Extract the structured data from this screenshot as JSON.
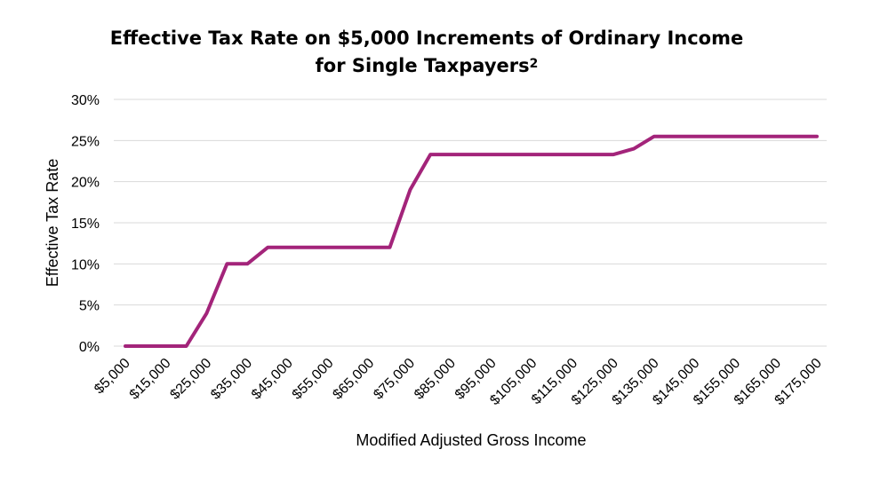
{
  "chart_data": {
    "type": "line",
    "title_line1": "Effective Tax Rate on $5,000 Increments of Ordinary Income",
    "title_line2": "for Single Taxpayers",
    "title_footnote": "2",
    "xlabel": "Modified Adjusted Gross Income",
    "ylabel": "Effective Tax Rate",
    "ylim": [
      0,
      30
    ],
    "yticks": [
      "0%",
      "5%",
      "10%",
      "15%",
      "20%",
      "25%",
      "30%"
    ],
    "x_tick_labels": [
      "$5,000",
      "$15,000",
      "$25,000",
      "$35,000",
      "$45,000",
      "$55,000",
      "$65,000",
      "$75,000",
      "$85,000",
      "$95,000",
      "$105,000",
      "$115,000",
      "$125,000",
      "$135,000",
      "$145,000",
      "$155,000",
      "$165,000",
      "$175,000"
    ],
    "x": [
      5000,
      10000,
      15000,
      20000,
      25000,
      30000,
      35000,
      40000,
      45000,
      50000,
      55000,
      60000,
      65000,
      70000,
      75000,
      80000,
      85000,
      90000,
      95000,
      100000,
      105000,
      110000,
      115000,
      120000,
      125000,
      130000,
      135000,
      140000,
      145000,
      150000,
      155000,
      160000,
      165000,
      170000,
      175000
    ],
    "series": [
      {
        "values": [
          0,
          0,
          0,
          0,
          4,
          10,
          10,
          12,
          12,
          12,
          12,
          12,
          12,
          12,
          19,
          23.3,
          23.3,
          23.3,
          23.3,
          23.3,
          23.3,
          23.3,
          23.3,
          23.3,
          23.3,
          24,
          25.5,
          25.5,
          25.5,
          25.5,
          25.5,
          25.5,
          25.5,
          25.5,
          25.5
        ],
        "color": "#A3247A"
      }
    ],
    "grid": true,
    "legend": "none"
  }
}
